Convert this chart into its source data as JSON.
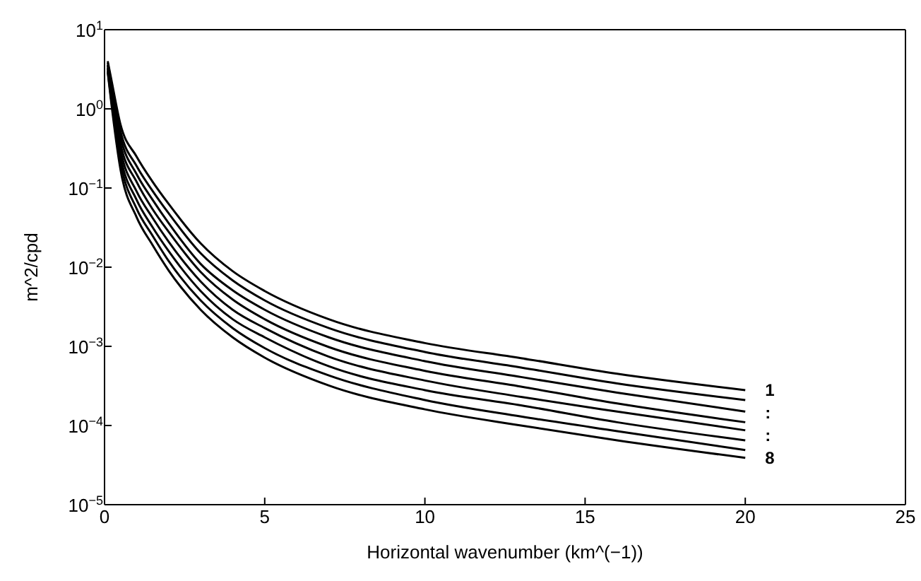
{
  "chart_data": {
    "type": "line",
    "xlabel": "Horizontal wavenumber (km^(−1))",
    "ylabel": "m^2/cpd",
    "x": [
      0.1,
      0.2,
      0.5,
      1,
      1.5,
      2,
      3,
      4,
      5,
      7,
      10,
      13,
      16,
      20
    ],
    "series": [
      {
        "color": "#000000",
        "values": [
          4.0,
          2.5,
          0.63,
          0.25,
          0.12,
          0.063,
          0.02,
          0.0089,
          0.005,
          0.0022,
          0.0011,
          0.00071,
          0.00045,
          0.00028
        ]
      },
      {
        "color": "#000000",
        "values": [
          3.8,
          2.3,
          0.52,
          0.19,
          0.092,
          0.048,
          0.015,
          0.0068,
          0.0038,
          0.0017,
          0.00085,
          0.00054,
          0.00034,
          0.00021
        ]
      },
      {
        "color": "#000000",
        "values": [
          3.6,
          2.1,
          0.44,
          0.15,
          0.071,
          0.036,
          0.011,
          0.0051,
          0.0029,
          0.0013,
          0.00065,
          0.00041,
          0.00026,
          0.00015
        ]
      },
      {
        "color": "#000000",
        "values": [
          3.5,
          1.9,
          0.36,
          0.12,
          0.054,
          0.028,
          0.0087,
          0.0039,
          0.0022,
          0.00098,
          0.00049,
          0.00031,
          0.00019,
          0.00011
        ]
      },
      {
        "color": "#000000",
        "values": [
          3.3,
          1.7,
          0.3,
          0.091,
          0.042,
          0.021,
          0.0066,
          0.0029,
          0.0017,
          0.00074,
          0.00037,
          0.00023,
          0.00015,
          8.7e-05
        ]
      },
      {
        "color": "#000000",
        "values": [
          3.2,
          1.6,
          0.25,
          0.071,
          0.032,
          0.016,
          0.005,
          0.0022,
          0.0013,
          0.00056,
          0.00028,
          0.00018,
          0.00011,
          6.5e-05
        ]
      },
      {
        "color": "#000000",
        "values": [
          3.0,
          1.4,
          0.21,
          0.055,
          0.025,
          0.012,
          0.0038,
          0.0017,
          0.00095,
          0.00043,
          0.00021,
          0.00013,
          8.5e-05,
          4.9e-05
        ]
      },
      {
        "color": "#000000",
        "values": [
          2.9,
          1.3,
          0.17,
          0.043,
          0.019,
          0.0091,
          0.0029,
          0.0013,
          0.00072,
          0.00032,
          0.00016,
          0.0001,
          6.5e-05,
          3.9e-05
        ]
      }
    ],
    "xlim": [
      0,
      25
    ],
    "xticks": [
      0,
      5,
      10,
      15,
      20,
      25
    ],
    "ylim": [
      1e-05,
      10
    ],
    "yticks": [
      {
        "value": 1e-05,
        "label": "10$^{−5}$"
      },
      {
        "value": 0.0001,
        "label": "10$^{−4}$"
      },
      {
        "value": 0.001,
        "label": "10$^{−3}$"
      },
      {
        "value": 0.01,
        "label": "10$^{−2}$"
      },
      {
        "value": 0.1,
        "label": "10$^{−1}$"
      },
      {
        "value": 1,
        "label": "10$^{0}$"
      },
      {
        "value": 10,
        "label": "10$^{1}$"
      }
    ],
    "log": "y",
    "marker": "none",
    "line_style": "solid",
    "annotations": [
      "1",
      ":",
      ":",
      "8"
    ]
  }
}
